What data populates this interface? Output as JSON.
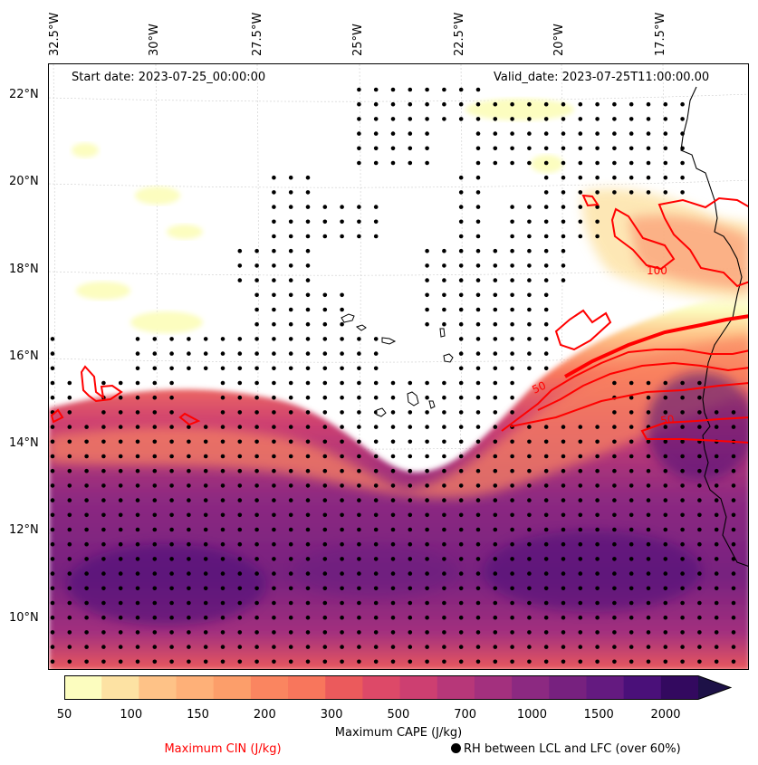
{
  "map": {
    "start_date": "Start date: 2023-07-25_00:00:00",
    "valid_date": "Valid_date: 2023-07-25T11:00:00.00",
    "lon_labels": [
      "32.5°W",
      "30°W",
      "27.5°W",
      "25°W",
      "22.5°W",
      "20°W",
      "17.5°W"
    ],
    "lat_labels": [
      "22°N",
      "20°N",
      "18°N",
      "16°N",
      "14°N",
      "12°N",
      "10°N"
    ],
    "contour_labels": [
      "50",
      "100",
      "50"
    ]
  },
  "colorbar": {
    "label": "Maximum CAPE (J/kg)",
    "ticks": [
      "50",
      "100",
      "150",
      "200",
      "300",
      "500",
      "700",
      "1000",
      "1500",
      "2000"
    ],
    "colors": [
      "#fcfdbf",
      "#fde2a3",
      "#fec287",
      "#feb078",
      "#fc9e6a",
      "#fa8560",
      "#f8765c",
      "#eb5a5c",
      "#dd4968",
      "#cd3f71",
      "#b73779",
      "#a3307e",
      "#8c2981",
      "#77217f",
      "#641a80",
      "#4a1079",
      "#33095f",
      "#1d1147"
    ]
  },
  "legend": {
    "cin_label": "Maximum CIN (J/kg)",
    "cin_color": "#ff0000",
    "rh_label": "RH between LCL and LFC (over 60%)"
  }
}
